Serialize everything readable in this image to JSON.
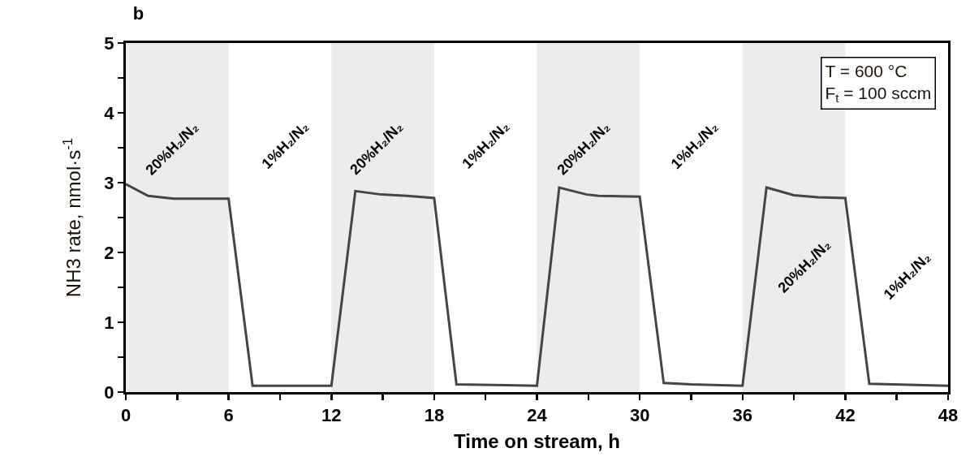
{
  "chart_data": {
    "type": "line",
    "title": "b",
    "xlabel": "Time on stream, h",
    "ylabel": "NH3 rate, nmol·s$^{-1}$",
    "x": [
      0,
      1.3,
      2.8,
      6,
      7.4,
      12,
      13.4,
      14.9,
      16.4,
      18,
      19.3,
      22.2,
      24,
      25.3,
      26.9,
      27.6,
      30,
      31.4,
      33,
      36,
      37.4,
      39,
      40.4,
      42,
      43.4,
      48
    ],
    "series": [
      {
        "color": "#454545",
        "values": [
          2.98,
          2.81,
          2.77,
          2.77,
          0.09,
          0.09,
          2.88,
          2.83,
          2.81,
          2.78,
          0.11,
          0.1,
          0.09,
          2.93,
          2.83,
          2.81,
          2.8,
          0.13,
          0.11,
          0.09,
          2.93,
          2.82,
          2.79,
          2.78,
          0.12,
          0.09
        ]
      }
    ],
    "xlim": [
      0,
      48
    ],
    "xticks": [
      0,
      {
        "value": 3,
        "label": null
      },
      6,
      {
        "value": 9,
        "label": null
      },
      12,
      {
        "value": 15,
        "label": null
      },
      18,
      {
        "value": 21,
        "label": null
      },
      24,
      {
        "value": 27,
        "label": null
      },
      30,
      {
        "value": 33,
        "label": null
      },
      36,
      {
        "value": 39,
        "label": null
      },
      42,
      {
        "value": 45,
        "label": null
      },
      48
    ],
    "ylim": [
      0,
      5
    ],
    "yticks": [
      0,
      {
        "value": 0.5,
        "label": null
      },
      1,
      {
        "value": 1.5,
        "label": null
      },
      2,
      {
        "value": 2.5,
        "label": null
      },
      3,
      {
        "value": 3.5,
        "label": null
      },
      4,
      {
        "value": 4.5,
        "label": null
      },
      5
    ],
    "bands": [
      {
        "axis": "x",
        "from": 0,
        "to": 6,
        "color": "#ebecee",
        "label": "20%H₂/N₂"
      },
      {
        "axis": "x",
        "from": 12,
        "to": 18,
        "color": "#ebecee",
        "label": "20%H₂/N₂"
      },
      {
        "axis": "x",
        "from": 24,
        "to": 30,
        "color": "#ebecee",
        "label": "20%H₂/N₂"
      },
      {
        "axis": "x",
        "from": 36,
        "to": 42,
        "color": "#ebecee",
        "label": "20%H₂/N₂"
      }
    ],
    "annotations": [
      "1%H₂/N₂",
      "1%H₂/N₂",
      "1%H₂/N₂",
      "1%H₂/N₂",
      "T = 600 °C",
      "F$_{t}$ = 100 sccm"
    ],
    "grid": false,
    "marker": "none",
    "line_style": "solid"
  }
}
